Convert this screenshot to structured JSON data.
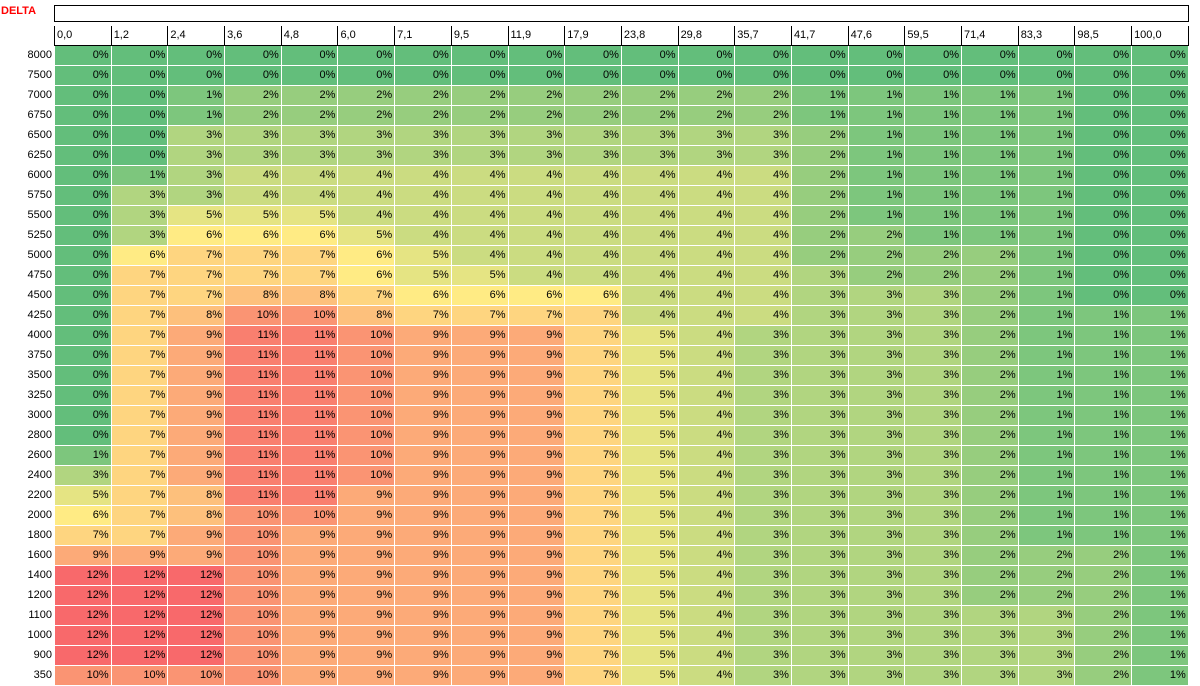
{
  "sheet": {
    "title": "DELTA",
    "columns": [
      "0,0",
      "1,2",
      "2,4",
      "3,6",
      "4,8",
      "6,0",
      "7,1",
      "9,5",
      "11,9",
      "17,9",
      "23,8",
      "29,8",
      "35,7",
      "41,7",
      "47,6",
      "59,5",
      "71,4",
      "83,3",
      "98,5",
      "100,0"
    ],
    "rows": [
      {
        "label": "8000",
        "values": [
          0,
          0,
          0,
          0,
          0,
          0,
          0,
          0,
          0,
          0,
          0,
          0,
          0,
          0,
          0,
          0,
          0,
          0,
          0,
          0
        ]
      },
      {
        "label": "7500",
        "values": [
          0,
          0,
          0,
          0,
          0,
          0,
          0,
          0,
          0,
          0,
          0,
          0,
          0,
          0,
          0,
          0,
          0,
          0,
          0,
          0
        ]
      },
      {
        "label": "7000",
        "values": [
          0,
          0,
          1,
          2,
          2,
          2,
          2,
          2,
          2,
          2,
          2,
          2,
          2,
          1,
          1,
          1,
          1,
          1,
          0,
          0
        ]
      },
      {
        "label": "6750",
        "values": [
          0,
          0,
          1,
          2,
          2,
          2,
          2,
          2,
          2,
          2,
          2,
          2,
          2,
          1,
          1,
          1,
          1,
          1,
          0,
          0
        ]
      },
      {
        "label": "6500",
        "values": [
          0,
          0,
          3,
          3,
          3,
          3,
          3,
          3,
          3,
          3,
          3,
          3,
          3,
          2,
          1,
          1,
          1,
          1,
          0,
          0
        ]
      },
      {
        "label": "6250",
        "values": [
          0,
          0,
          3,
          3,
          3,
          3,
          3,
          3,
          3,
          3,
          3,
          3,
          3,
          2,
          1,
          1,
          1,
          1,
          0,
          0
        ]
      },
      {
        "label": "6000",
        "values": [
          0,
          1,
          3,
          4,
          4,
          4,
          4,
          4,
          4,
          4,
          4,
          4,
          4,
          2,
          1,
          1,
          1,
          1,
          0,
          0
        ]
      },
      {
        "label": "5750",
        "values": [
          0,
          3,
          3,
          4,
          4,
          4,
          4,
          4,
          4,
          4,
          4,
          4,
          4,
          2,
          1,
          1,
          1,
          1,
          0,
          0
        ]
      },
      {
        "label": "5500",
        "values": [
          0,
          3,
          5,
          5,
          5,
          4,
          4,
          4,
          4,
          4,
          4,
          4,
          4,
          2,
          1,
          1,
          1,
          1,
          0,
          0
        ]
      },
      {
        "label": "5250",
        "values": [
          0,
          3,
          6,
          6,
          6,
          5,
          4,
          4,
          4,
          4,
          4,
          4,
          4,
          2,
          2,
          1,
          1,
          1,
          0,
          0
        ]
      },
      {
        "label": "5000",
        "values": [
          0,
          6,
          7,
          7,
          7,
          6,
          5,
          4,
          4,
          4,
          4,
          4,
          4,
          2,
          2,
          2,
          2,
          1,
          0,
          0
        ]
      },
      {
        "label": "4750",
        "values": [
          0,
          7,
          7,
          7,
          7,
          6,
          5,
          5,
          4,
          4,
          4,
          4,
          4,
          3,
          2,
          2,
          2,
          1,
          0,
          0
        ]
      },
      {
        "label": "4500",
        "values": [
          0,
          7,
          7,
          8,
          8,
          7,
          6,
          6,
          6,
          6,
          4,
          4,
          4,
          3,
          3,
          3,
          2,
          1,
          0,
          0
        ]
      },
      {
        "label": "4250",
        "values": [
          0,
          7,
          8,
          10,
          10,
          8,
          7,
          7,
          7,
          7,
          4,
          4,
          4,
          3,
          3,
          3,
          2,
          1,
          1,
          1
        ]
      },
      {
        "label": "4000",
        "values": [
          0,
          7,
          9,
          11,
          11,
          10,
          9,
          9,
          9,
          7,
          5,
          4,
          3,
          3,
          3,
          3,
          2,
          1,
          1,
          1
        ]
      },
      {
        "label": "3750",
        "values": [
          0,
          7,
          9,
          11,
          11,
          10,
          9,
          9,
          9,
          7,
          5,
          4,
          3,
          3,
          3,
          3,
          2,
          1,
          1,
          1
        ]
      },
      {
        "label": "3500",
        "values": [
          0,
          7,
          9,
          11,
          11,
          10,
          9,
          9,
          9,
          7,
          5,
          4,
          3,
          3,
          3,
          3,
          2,
          1,
          1,
          1
        ]
      },
      {
        "label": "3250",
        "values": [
          0,
          7,
          9,
          11,
          11,
          10,
          9,
          9,
          9,
          7,
          5,
          4,
          3,
          3,
          3,
          3,
          2,
          1,
          1,
          1
        ]
      },
      {
        "label": "3000",
        "values": [
          0,
          7,
          9,
          11,
          11,
          10,
          9,
          9,
          9,
          7,
          5,
          4,
          3,
          3,
          3,
          3,
          2,
          1,
          1,
          1
        ]
      },
      {
        "label": "2800",
        "values": [
          0,
          7,
          9,
          11,
          11,
          10,
          9,
          9,
          9,
          7,
          5,
          4,
          3,
          3,
          3,
          3,
          2,
          1,
          1,
          1
        ]
      },
      {
        "label": "2600",
        "values": [
          1,
          7,
          9,
          11,
          11,
          10,
          9,
          9,
          9,
          7,
          5,
          4,
          3,
          3,
          3,
          3,
          2,
          1,
          1,
          1
        ]
      },
      {
        "label": "2400",
        "values": [
          3,
          7,
          9,
          11,
          11,
          10,
          9,
          9,
          9,
          7,
          5,
          4,
          3,
          3,
          3,
          3,
          2,
          1,
          1,
          1
        ]
      },
      {
        "label": "2200",
        "values": [
          5,
          7,
          8,
          11,
          11,
          9,
          9,
          9,
          9,
          7,
          5,
          4,
          3,
          3,
          3,
          3,
          2,
          1,
          1,
          1
        ]
      },
      {
        "label": "2000",
        "values": [
          6,
          7,
          8,
          10,
          10,
          9,
          9,
          9,
          9,
          7,
          5,
          4,
          3,
          3,
          3,
          3,
          2,
          1,
          1,
          1
        ]
      },
      {
        "label": "1800",
        "values": [
          7,
          7,
          9,
          10,
          9,
          9,
          9,
          9,
          9,
          7,
          5,
          4,
          3,
          3,
          3,
          3,
          2,
          1,
          1,
          1
        ]
      },
      {
        "label": "1600",
        "values": [
          9,
          9,
          9,
          10,
          9,
          9,
          9,
          9,
          9,
          7,
          5,
          4,
          3,
          3,
          3,
          3,
          2,
          2,
          2,
          1
        ]
      },
      {
        "label": "1400",
        "values": [
          12,
          12,
          12,
          10,
          9,
          9,
          9,
          9,
          9,
          7,
          5,
          4,
          3,
          3,
          3,
          3,
          2,
          2,
          2,
          1
        ]
      },
      {
        "label": "1200",
        "values": [
          12,
          12,
          12,
          10,
          9,
          9,
          9,
          9,
          9,
          7,
          5,
          4,
          3,
          3,
          3,
          3,
          2,
          2,
          2,
          1
        ]
      },
      {
        "label": "1100",
        "values": [
          12,
          12,
          12,
          10,
          9,
          9,
          9,
          9,
          9,
          7,
          5,
          4,
          3,
          3,
          3,
          3,
          3,
          3,
          2,
          1
        ]
      },
      {
        "label": "1000",
        "values": [
          12,
          12,
          12,
          10,
          9,
          9,
          9,
          9,
          9,
          7,
          5,
          4,
          3,
          3,
          3,
          3,
          3,
          3,
          2,
          1
        ]
      },
      {
        "label": "900",
        "values": [
          12,
          12,
          12,
          10,
          9,
          9,
          9,
          9,
          9,
          7,
          5,
          4,
          3,
          3,
          3,
          3,
          3,
          3,
          2,
          1
        ]
      },
      {
        "label": "350",
        "values": [
          10,
          10,
          10,
          10,
          9,
          9,
          9,
          9,
          9,
          7,
          5,
          4,
          3,
          3,
          3,
          3,
          3,
          3,
          2,
          1
        ]
      }
    ],
    "value_suffix": "%",
    "color_scale": {
      "green": "#63be7b",
      "yellow": "#ffeb84",
      "red": "#f8696b"
    }
  }
}
